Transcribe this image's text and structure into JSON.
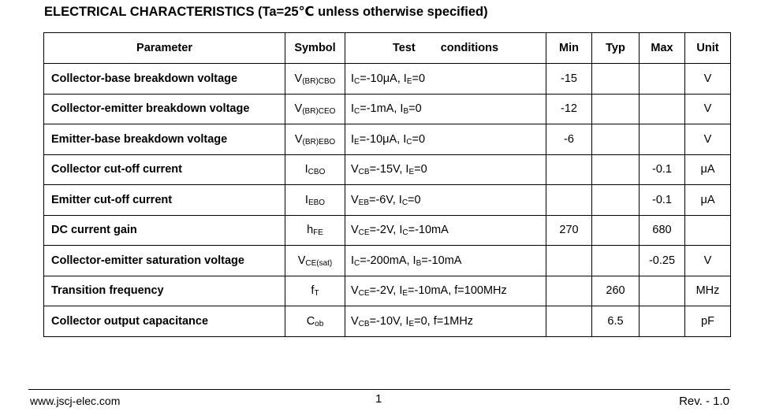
{
  "title": "ELECTRICAL CHARACTERISTICS (Ta=25℃ unless otherwise specified)",
  "headers": {
    "parameter": "Parameter",
    "symbol": "Symbol",
    "test": "Test",
    "conditions": "conditions",
    "min": "Min",
    "typ": "Typ",
    "max": "Max",
    "unit": "Unit"
  },
  "rows": [
    {
      "parameter": "Collector-base breakdown voltage",
      "symbol": {
        "main": "V",
        "sub": "(BR)CBO"
      },
      "conditions": [
        {
          "t": "I"
        },
        {
          "s": "C"
        },
        {
          "t": "=-10μA, I"
        },
        {
          "s": "E"
        },
        {
          "t": "=0"
        }
      ],
      "min": "-15",
      "typ": "",
      "max": "",
      "unit": "V"
    },
    {
      "parameter": "Collector-emitter breakdown voltage",
      "symbol": {
        "main": "V",
        "sub": "(BR)CEO"
      },
      "conditions": [
        {
          "t": "I"
        },
        {
          "s": "C"
        },
        {
          "t": "=-1mA, I"
        },
        {
          "s": "B"
        },
        {
          "t": "=0"
        }
      ],
      "min": "-12",
      "typ": "",
      "max": "",
      "unit": "V"
    },
    {
      "parameter": "Emitter-base breakdown voltage",
      "symbol": {
        "main": "V",
        "sub": "(BR)EBO"
      },
      "conditions": [
        {
          "t": "I"
        },
        {
          "s": "E"
        },
        {
          "t": "=-10μA, I"
        },
        {
          "s": "C"
        },
        {
          "t": "=0"
        }
      ],
      "min": "-6",
      "typ": "",
      "max": "",
      "unit": "V"
    },
    {
      "parameter": "Collector cut-off current",
      "symbol": {
        "main": "I",
        "sub": "CBO"
      },
      "conditions": [
        {
          "t": "V"
        },
        {
          "s": "CB"
        },
        {
          "t": "=-15V, I"
        },
        {
          "s": "E"
        },
        {
          "t": "=0"
        }
      ],
      "min": "",
      "typ": "",
      "max": "-0.1",
      "unit": "μA"
    },
    {
      "parameter": "Emitter cut-off current",
      "symbol": {
        "main": "I",
        "sub": "EBO"
      },
      "conditions": [
        {
          "t": "V"
        },
        {
          "s": "EB"
        },
        {
          "t": "=-6V, I"
        },
        {
          "s": "C"
        },
        {
          "t": "=0"
        }
      ],
      "min": "",
      "typ": "",
      "max": "-0.1",
      "unit": "μA"
    },
    {
      "parameter": "DC current gain",
      "symbol": {
        "main": "h",
        "sub": "FE"
      },
      "conditions": [
        {
          "t": "V"
        },
        {
          "s": "CE"
        },
        {
          "t": "=-2V, I"
        },
        {
          "s": "C"
        },
        {
          "t": "=-10mA"
        }
      ],
      "min": "270",
      "typ": "",
      "max": "680",
      "unit": ""
    },
    {
      "parameter": "Collector-emitter saturation voltage",
      "symbol": {
        "main": "V",
        "sub": "CE(sat)"
      },
      "conditions": [
        {
          "t": "I"
        },
        {
          "s": "C"
        },
        {
          "t": "=-200mA, I"
        },
        {
          "s": "B"
        },
        {
          "t": "=-10mA"
        }
      ],
      "min": "",
      "typ": "",
      "max": "-0.25",
      "unit": "V"
    },
    {
      "parameter": "Transition frequency",
      "symbol": {
        "main": "f",
        "sub": "T"
      },
      "conditions": [
        {
          "t": "V"
        },
        {
          "s": "CE"
        },
        {
          "t": "=-2V, I"
        },
        {
          "s": "E"
        },
        {
          "t": "=-10mA, f=100MHz"
        }
      ],
      "min": "",
      "typ": "260",
      "max": "",
      "unit": "MHz"
    },
    {
      "parameter": "Collector output capacitance",
      "symbol": {
        "main": "C",
        "sub": "ob"
      },
      "conditions": [
        {
          "t": "V"
        },
        {
          "s": "CB"
        },
        {
          "t": "=-10V, I"
        },
        {
          "s": "E"
        },
        {
          "t": "=0, f=1MHz"
        }
      ],
      "min": "",
      "typ": "6.5",
      "max": "",
      "unit": "pF"
    }
  ],
  "footer": {
    "website": "www.jscj-elec.com",
    "page_number": "1",
    "revision": "Rev. - 1.0"
  }
}
